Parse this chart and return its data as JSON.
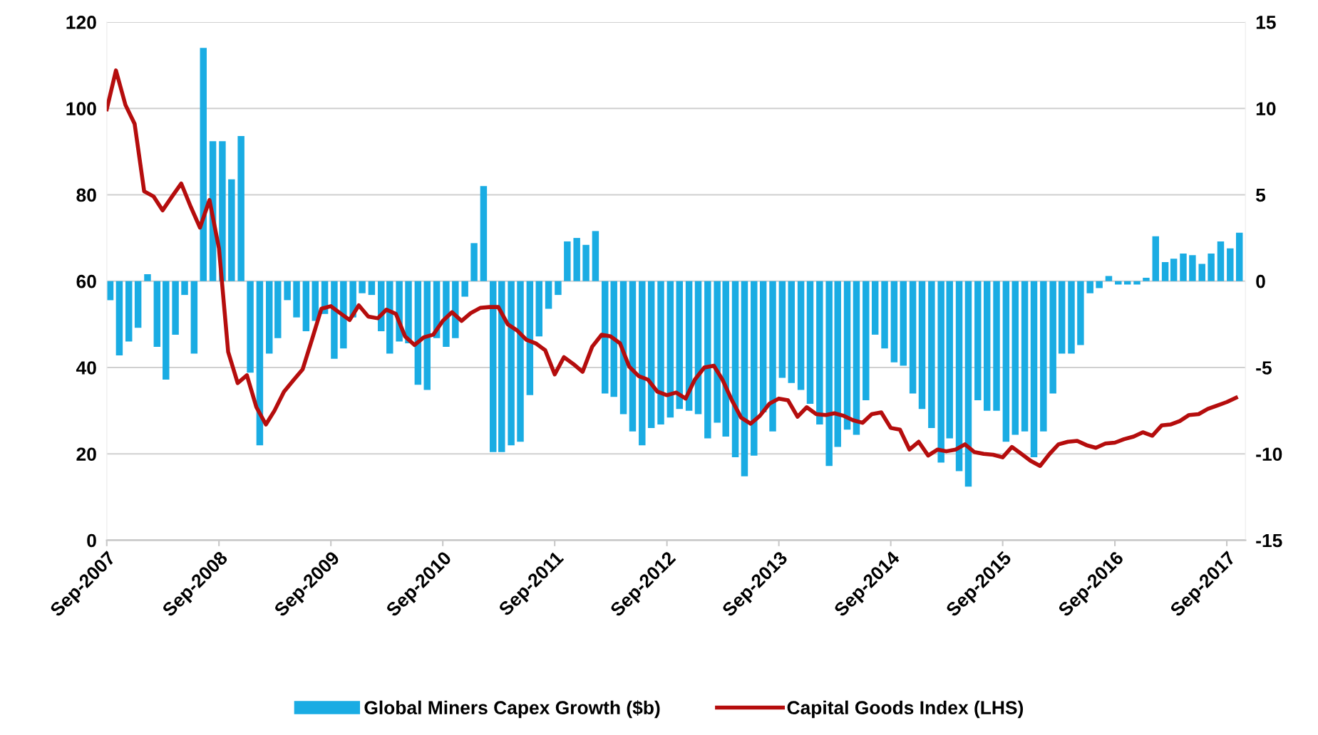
{
  "chart_data": {
    "type": "bar",
    "x": [
      "2007-09",
      "2007-10",
      "2007-11",
      "2007-12",
      "2008-01",
      "2008-02",
      "2008-03",
      "2008-04",
      "2008-05",
      "2008-06",
      "2008-07",
      "2008-08",
      "2008-09",
      "2008-10",
      "2008-11",
      "2008-12",
      "2009-01",
      "2009-02",
      "2009-03",
      "2009-04",
      "2009-05",
      "2009-06",
      "2009-07",
      "2009-08",
      "2009-09",
      "2009-10",
      "2009-11",
      "2009-12",
      "2010-01",
      "2010-02",
      "2010-03",
      "2010-04",
      "2010-05",
      "2010-06",
      "2010-07",
      "2010-08",
      "2010-09",
      "2010-10",
      "2010-11",
      "2010-12",
      "2011-01",
      "2011-02",
      "2011-03",
      "2011-04",
      "2011-05",
      "2011-06",
      "2011-07",
      "2011-08",
      "2011-09",
      "2011-10",
      "2011-11",
      "2011-12",
      "2012-01",
      "2012-02",
      "2012-03",
      "2012-04",
      "2012-05",
      "2012-06",
      "2012-07",
      "2012-08",
      "2012-09",
      "2012-10",
      "2012-11",
      "2012-12",
      "2013-01",
      "2013-02",
      "2013-03",
      "2013-04",
      "2013-05",
      "2013-06",
      "2013-07",
      "2013-08",
      "2013-09",
      "2013-10",
      "2013-11",
      "2013-12",
      "2014-01",
      "2014-02",
      "2014-03",
      "2014-04",
      "2014-05",
      "2014-06",
      "2014-07",
      "2014-08",
      "2014-09",
      "2014-10",
      "2014-11",
      "2014-12",
      "2015-01",
      "2015-02",
      "2015-03",
      "2015-04",
      "2015-05",
      "2015-06",
      "2015-07",
      "2015-08",
      "2015-09",
      "2015-10",
      "2015-11",
      "2015-12",
      "2016-01",
      "2016-02",
      "2016-03",
      "2016-04",
      "2016-05",
      "2016-06",
      "2016-07",
      "2016-08",
      "2016-09",
      "2016-10",
      "2016-11",
      "2016-12",
      "2017-01",
      "2017-02",
      "2017-03",
      "2017-04",
      "2017-05",
      "2017-06",
      "2017-07",
      "2017-08",
      "2017-09",
      "2017-10"
    ],
    "series": [
      {
        "name": "Global Miners Capex Growth ($b)",
        "axis": "y2",
        "color": "#1aace3",
        "values": [
          -1.1,
          -4.3,
          -3.5,
          -2.7,
          0.4,
          -3.8,
          -5.7,
          -3.1,
          -0.8,
          -4.2,
          13.5,
          8.1,
          8.1,
          5.9,
          8.4,
          -5.3,
          -9.5,
          -4.2,
          -3.3,
          -1.1,
          -2.1,
          -2.9,
          -2.3,
          -1.9,
          -4.5,
          -3.9,
          -2.1,
          -0.7,
          -0.8,
          -2.9,
          -4.2,
          -3.5,
          -3.6,
          -6.0,
          -6.3,
          -3.3,
          -3.8,
          -3.3,
          -0.9,
          2.2,
          5.5,
          -9.9,
          -9.9,
          -9.5,
          -9.3,
          -6.6,
          -3.2,
          -1.6,
          -0.8,
          2.3,
          2.5,
          2.1,
          2.9,
          -6.5,
          -6.7,
          -7.7,
          -8.7,
          -9.5,
          -8.5,
          -8.3,
          -7.9,
          -7.4,
          -7.5,
          -7.7,
          -9.1,
          -8.2,
          -9.0,
          -10.2,
          -11.3,
          -10.1,
          -7.6,
          -8.7,
          -5.6,
          -5.9,
          -6.3,
          -7.1,
          -8.3,
          -10.7,
          -9.6,
          -8.6,
          -8.9,
          -6.9,
          -3.1,
          -3.9,
          -4.7,
          -4.9,
          -6.5,
          -7.4,
          -8.5,
          -10.5,
          -9.1,
          -11.0,
          -11.9,
          -6.9,
          -7.5,
          -7.5,
          -9.3,
          -8.9,
          -8.7,
          -10.2,
          -8.7,
          -6.5,
          -4.2,
          -4.2,
          -3.7,
          -0.7,
          -0.4,
          0.3,
          -0.2,
          -0.2,
          -0.2,
          0.2,
          2.6,
          1.1,
          1.3,
          1.6,
          1.5,
          1.0,
          1.6,
          2.3,
          1.9,
          2.8
        ]
      },
      {
        "name": "Capital Goods Index (LHS)",
        "type": "line",
        "color": "#b50d0d",
        "values": [
          99.8,
          108.8,
          100.8,
          96.4,
          80.8,
          79.6,
          76.4,
          79.6,
          82.6,
          77.2,
          72.4,
          78.8,
          67.6,
          43.6,
          36.4,
          38.2,
          30.8,
          26.8,
          30,
          34.4,
          37,
          39.6,
          46.4,
          53.6,
          54.2,
          52.6,
          51,
          54.4,
          51.8,
          51.4,
          53.4,
          52.4,
          47.2,
          45.2,
          47,
          47.6,
          50.8,
          52.8,
          50.8,
          52.6,
          53.8,
          54,
          54,
          50,
          48.6,
          46.4,
          45.6,
          44,
          38.4,
          42.4,
          40.8,
          39,
          44.8,
          47.6,
          47.2,
          45.6,
          40.2,
          38,
          37.2,
          34.4,
          33.6,
          34.2,
          32.8,
          37.2,
          40,
          40.4,
          37.2,
          32.4,
          28.4,
          27,
          28.8,
          31.6,
          32.8,
          32.4,
          28.6,
          30.8,
          29.2,
          29,
          29.4,
          28.8,
          27.8,
          27.2,
          29.2,
          29.6,
          26,
          25.6,
          21,
          22.8,
          19.6,
          21,
          20.6,
          21,
          22.2,
          20.4,
          20,
          19.8,
          19.2,
          21.6,
          20,
          18.4,
          17.2,
          20,
          22.2,
          22.8,
          23,
          22,
          21.4,
          22.4,
          22.6,
          23.4,
          24,
          25,
          24.2,
          26.6,
          26.8,
          27.6,
          29,
          29.2,
          30.4,
          31.2,
          32,
          33
        ]
      }
    ],
    "xlim": [
      "2007-09",
      "2017-11"
    ],
    "xticks": [
      {
        "value": "2007-09",
        "label": "Sep-2007"
      },
      {
        "value": "2008-09",
        "label": "Sep-2008"
      },
      {
        "value": "2009-09",
        "label": "Sep-2009"
      },
      {
        "value": "2010-09",
        "label": "Sep-2010"
      },
      {
        "value": "2011-09",
        "label": "Sep-2011"
      },
      {
        "value": "2012-09",
        "label": "Sep-2012"
      },
      {
        "value": "2013-09",
        "label": "Sep-2013"
      },
      {
        "value": "2014-09",
        "label": "Sep-2014"
      },
      {
        "value": "2015-09",
        "label": "Sep-2015"
      },
      {
        "value": "2016-09",
        "label": "Sep-2016"
      },
      {
        "value": "2017-09",
        "label": "Sep-2017"
      }
    ],
    "ylim": [
      0,
      120
    ],
    "yticks": [
      0,
      20,
      40,
      60,
      80,
      100,
      120
    ],
    "y2lim": [
      -15,
      15
    ],
    "y2ticks": [
      -15,
      -10,
      -5,
      0,
      5,
      10,
      15
    ],
    "grid": "y",
    "legend": "bottom"
  }
}
